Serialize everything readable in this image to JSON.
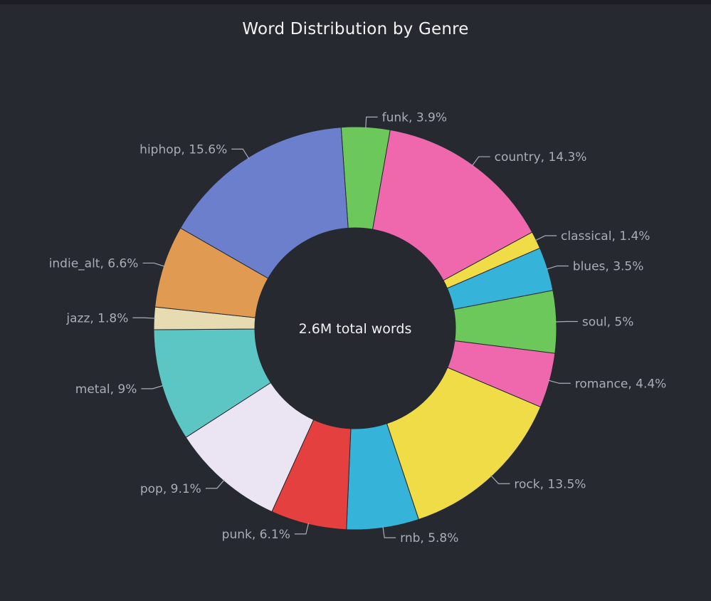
{
  "chart_data": {
    "type": "pie",
    "title": "Word Distribution by Genre",
    "center_label": "2.6M total words",
    "slices": [
      {
        "label": "funk",
        "pct_label": "3.9%",
        "value": 3.9,
        "color": "#6cc85a"
      },
      {
        "label": "country",
        "pct_label": "14.3%",
        "value": 14.3,
        "color": "#ef68ad"
      },
      {
        "label": "classical",
        "pct_label": "1.4%",
        "value": 1.4,
        "color": "#f0dc46"
      },
      {
        "label": "blues",
        "pct_label": "3.5%",
        "value": 3.5,
        "color": "#36b3d8"
      },
      {
        "label": "soul",
        "pct_label": "5%",
        "value": 5.0,
        "color": "#6cc85a"
      },
      {
        "label": "romance",
        "pct_label": "4.4%",
        "value": 4.4,
        "color": "#ef68ad"
      },
      {
        "label": "rock",
        "pct_label": "13.5%",
        "value": 13.5,
        "color": "#f0dc46"
      },
      {
        "label": "rnb",
        "pct_label": "5.8%",
        "value": 5.8,
        "color": "#36b3d8"
      },
      {
        "label": "punk",
        "pct_label": "6.1%",
        "value": 6.1,
        "color": "#e4403f"
      },
      {
        "label": "pop",
        "pct_label": "9.1%",
        "value": 9.1,
        "color": "#ebe4f3"
      },
      {
        "label": "metal",
        "pct_label": "9%",
        "value": 9.0,
        "color": "#5cc6c4"
      },
      {
        "label": "jazz",
        "pct_label": "1.8%",
        "value": 1.8,
        "color": "#e6dbb1"
      },
      {
        "label": "indie_alt",
        "pct_label": "6.6%",
        "value": 6.6,
        "color": "#e09a51"
      },
      {
        "label": "hiphop",
        "pct_label": "15.6%",
        "value": 15.6,
        "color": "#6c7fcc"
      }
    ],
    "colors": {
      "background": "#262930",
      "label_text": "#a9adb8",
      "leader_line": "#a9adb8",
      "slice_border": "#262930",
      "center_text": "#f2f2f2"
    }
  }
}
